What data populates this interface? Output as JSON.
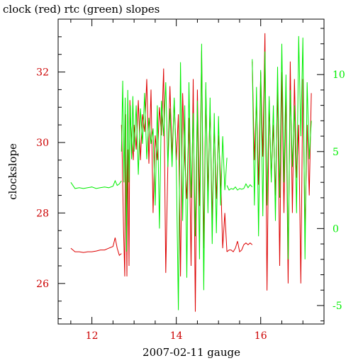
{
  "chart_data": {
    "type": "line",
    "title": "clock (red) rtc (green) slopes",
    "xlabel": "2007-02-11 gauge",
    "ylabel": "clockslope",
    "x_ticks": [
      12,
      14,
      16
    ],
    "x_range": [
      11.2,
      17.5
    ],
    "y_left": {
      "ticks": [
        26,
        28,
        30,
        32
      ],
      "range": [
        24.85,
        33.5
      ],
      "color": "#cc0000"
    },
    "y_right": {
      "ticks": [
        -5,
        0,
        5,
        10
      ],
      "range": [
        -6.2,
        13.6
      ],
      "color": "#00ee00"
    },
    "series": [
      {
        "name": "clock",
        "axis": "left",
        "color": "#dd0000",
        "segments": [
          {
            "x": [
              11.5,
              11.6,
              11.7,
              11.8,
              11.9,
              12.0,
              12.1,
              12.2,
              12.3,
              12.4,
              12.5,
              12.55,
              12.6,
              12.65,
              12.7
            ],
            "y": [
              27.0,
              26.9,
              26.9,
              26.88,
              26.9,
              26.9,
              26.92,
              26.95,
              26.95,
              27.0,
              27.05,
              27.3,
              27.0,
              26.8,
              26.85
            ]
          },
          {
            "x": [
              12.7,
              12.72,
              12.75,
              12.78,
              12.8,
              12.83,
              12.85,
              12.88,
              12.9,
              12.92,
              12.95,
              12.98,
              13.0,
              13.05,
              13.1,
              13.15,
              13.2,
              13.25,
              13.3,
              13.35,
              13.4,
              13.45,
              13.5,
              13.55,
              13.6,
              13.65,
              13.7,
              13.75,
              13.8,
              13.85,
              13.9,
              13.95,
              14.0,
              14.05,
              14.1,
              14.15,
              14.2,
              14.25,
              14.3,
              14.35,
              14.4,
              14.45,
              14.5,
              14.55,
              14.6,
              14.65,
              14.7,
              14.75,
              14.8,
              14.85,
              14.9,
              14.95,
              15.0,
              15.05,
              15.1,
              15.15,
              15.2
            ],
            "y": [
              30.5,
              29.5,
              27.5,
              26.2,
              30.8,
              26.2,
              29.8,
              26.5,
              31.2,
              30.5,
              30.0,
              29.5,
              30.5,
              29.8,
              31.2,
              29.5,
              30.8,
              30.3,
              31.8,
              29.4,
              31.5,
              28.0,
              30.2,
              29.5,
              31.0,
              30.2,
              32.1,
              26.3,
              29.4,
              31.6,
              29.6,
              31.2,
              29.5,
              30.8,
              26.2,
              31.4,
              29.5,
              28.4,
              30.7,
              26.5,
              31.8,
              25.2,
              31.5,
              28.2,
              32.6,
              27.0,
              31.5,
              28.6,
              31.0,
              27.8,
              30.5,
              28.4,
              30.2,
              29.0,
              27.0,
              28.0,
              26.9
            ]
          },
          {
            "x": [
              15.2,
              15.25,
              15.3,
              15.35,
              15.4,
              15.45,
              15.5,
              15.55,
              15.6,
              15.65,
              15.7,
              15.75,
              15.8
            ],
            "y": [
              26.9,
              26.95,
              26.95,
              26.9,
              27.0,
              27.2,
              26.9,
              26.95,
              27.1,
              27.15,
              27.1,
              27.15,
              27.1
            ]
          },
          {
            "x": [
              15.8,
              15.85,
              15.9,
              15.95,
              16.0,
              16.05,
              16.1,
              16.15,
              16.2,
              16.25,
              16.3,
              16.35,
              16.4,
              16.45,
              16.5,
              16.55,
              16.6,
              16.65,
              16.7,
              16.75,
              16.8,
              16.85,
              16.9,
              16.95,
              17.0,
              17.05,
              17.1,
              17.15,
              17.2
            ],
            "y": [
              32.3,
              29.5,
              31.2,
              28.8,
              32.0,
              29.6,
              33.1,
              25.8,
              31.2,
              29.0,
              30.5,
              28.5,
              31.6,
              26.5,
              32.0,
              28.0,
              31.5,
              26.0,
              32.3,
              28.0,
              31.8,
              29.0,
              30.5,
              26.0,
              31.8,
              27.5,
              30.5,
              28.5,
              31.4
            ]
          }
        ]
      },
      {
        "name": "rtc",
        "axis": "right",
        "color": "#00ee00",
        "segments": [
          {
            "x": [
              11.5,
              11.6,
              11.7,
              11.8,
              11.9,
              12.0,
              12.1,
              12.2,
              12.3,
              12.4,
              12.5,
              12.55,
              12.6,
              12.65,
              12.7
            ],
            "y": [
              3.0,
              2.6,
              2.65,
              2.6,
              2.65,
              2.7,
              2.6,
              2.65,
              2.7,
              2.65,
              2.75,
              3.1,
              2.8,
              2.9,
              3.1
            ]
          },
          {
            "x": [
              12.7,
              12.73,
              12.76,
              12.79,
              12.82,
              12.85,
              12.88,
              12.91,
              12.94,
              12.97,
              13.0,
              13.05,
              13.1,
              13.15,
              13.2,
              13.25,
              13.3,
              13.35,
              13.4,
              13.45,
              13.5,
              13.55,
              13.6,
              13.65,
              13.7,
              13.75,
              13.8,
              13.85,
              13.9,
              13.95,
              14.0,
              14.05,
              14.1,
              14.15,
              14.2,
              14.25,
              14.3,
              14.35,
              14.4,
              14.45,
              14.5,
              14.55,
              14.6,
              14.65,
              14.7,
              14.75,
              14.8,
              14.85,
              14.9,
              14.95,
              15.0,
              15.05,
              15.1,
              15.15,
              15.2
            ],
            "y": [
              5.0,
              9.6,
              3.0,
              8.5,
              -1.5,
              9.0,
              3.0,
              8.0,
              4.5,
              8.6,
              5.0,
              8.0,
              3.5,
              7.8,
              5.5,
              8.8,
              4.5,
              7.2,
              5.5,
              6.5,
              1.5,
              8.0,
              0.0,
              8.3,
              6.0,
              9.5,
              4.0,
              7.8,
              4.0,
              8.5,
              4.0,
              -5.3,
              10.8,
              0.5,
              8.0,
              -3.2,
              9.5,
              2.0,
              7.5,
              -0.5,
              8.3,
              -2.0,
              12.0,
              -4.0,
              9.5,
              1.0,
              8.5,
              -1.0,
              7.5,
              -0.3,
              7.3,
              1.5,
              6.0,
              2.5,
              4.6
            ]
          },
          {
            "x": [
              15.2,
              15.25,
              15.3,
              15.35,
              15.4,
              15.45,
              15.5,
              15.55,
              15.6,
              15.65,
              15.7,
              15.75,
              15.8
            ],
            "y": [
              2.8,
              2.5,
              2.6,
              2.55,
              2.7,
              2.5,
              2.6,
              2.55,
              2.6,
              2.9,
              2.65,
              2.85,
              2.7
            ]
          },
          {
            "x": [
              15.8,
              15.85,
              15.9,
              15.95,
              16.0,
              16.05,
              16.1,
              16.15,
              16.2,
              16.25,
              16.3,
              16.35,
              16.4,
              16.45,
              16.5,
              16.55,
              16.6,
              16.65,
              16.7,
              16.75,
              16.8,
              16.85,
              16.9,
              16.95,
              17.0,
              17.05,
              17.1,
              17.15,
              17.2
            ],
            "y": [
              11.0,
              1.5,
              9.2,
              -0.5,
              10.3,
              0.8,
              11.5,
              1.5,
              8.6,
              3.0,
              8.0,
              0.5,
              10.5,
              2.0,
              12.0,
              3.0,
              10.0,
              -2.0,
              9.0,
              4.0,
              8.0,
              1.0,
              12.5,
              6.0,
              12.4,
              -2.0,
              9.5,
              4.5,
              7.0
            ]
          }
        ]
      }
    ]
  }
}
